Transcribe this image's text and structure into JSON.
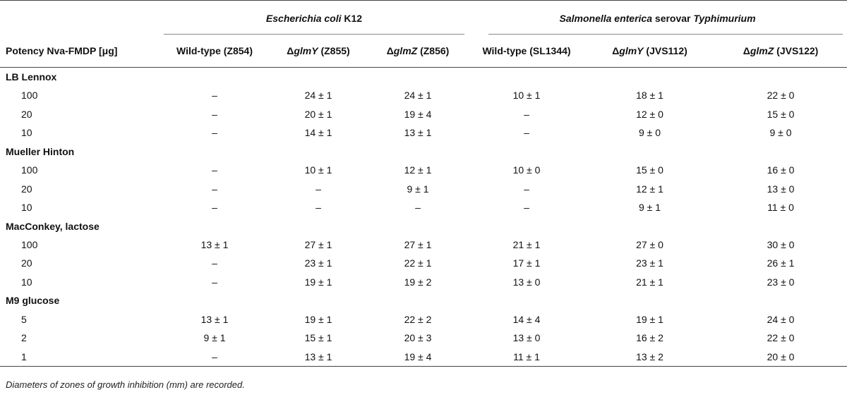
{
  "table": {
    "group_headers": {
      "ecoli": {
        "italic": "Escherichia coli",
        "rest": " K12"
      },
      "salmonella": {
        "italic": "Salmonella enterica",
        "mid": " serovar ",
        "italic2": "Typhimurium"
      }
    },
    "column_headers": [
      {
        "pre": "Potency Nva-FMDP [μg]",
        "it": "",
        "post": ""
      },
      {
        "pre": "Wild-type (Z854)",
        "it": "",
        "post": ""
      },
      {
        "pre": "Δ",
        "it": "glmY",
        "post": " (Z855)"
      },
      {
        "pre": "Δ",
        "it": "glmZ",
        "post": " (Z856)"
      },
      {
        "pre": "Wild-type (SL1344)",
        "it": "",
        "post": ""
      },
      {
        "pre": "Δ",
        "it": "glmY",
        "post": " (JVS112)"
      },
      {
        "pre": "Δ",
        "it": "glmZ",
        "post": " (JVS122)"
      }
    ],
    "sections": [
      {
        "title": "LB Lennox",
        "rows": [
          [
            "100",
            "–",
            "24 ± 1",
            "24 ± 1",
            "10 ± 1",
            "18 ± 1",
            "22 ± 0"
          ],
          [
            "20",
            "–",
            "20 ± 1",
            "19 ± 4",
            "–",
            "12 ± 0",
            "15 ± 0"
          ],
          [
            "10",
            "–",
            "14 ± 1",
            "13 ± 1",
            "–",
            "9 ± 0",
            "9 ± 0"
          ]
        ]
      },
      {
        "title": "Mueller Hinton",
        "rows": [
          [
            "100",
            "–",
            "10 ± 1",
            "12 ± 1",
            "10 ± 0",
            "15 ± 0",
            "16 ± 0"
          ],
          [
            "20",
            "–",
            "–",
            "9 ± 1",
            "–",
            "12 ± 1",
            "13 ± 0"
          ],
          [
            "10",
            "–",
            "–",
            "–",
            "–",
            "9 ± 1",
            "11 ± 0"
          ]
        ]
      },
      {
        "title": "MacConkey, lactose",
        "rows": [
          [
            "100",
            "13 ± 1",
            "27 ± 1",
            "27 ± 1",
            "21 ± 1",
            "27 ± 0",
            "30 ± 0"
          ],
          [
            "20",
            "–",
            "23 ± 1",
            "22 ± 1",
            "17 ± 1",
            "23 ± 1",
            "26 ± 1"
          ],
          [
            "10",
            "–",
            "19 ± 1",
            "19 ± 2",
            "13 ± 0",
            "21 ± 1",
            "23 ± 0"
          ]
        ]
      },
      {
        "title": "M9 glucose",
        "rows": [
          [
            "5",
            "13 ± 1",
            "19 ± 1",
            "22 ± 2",
            "14 ± 4",
            "19 ± 1",
            "24 ± 0"
          ],
          [
            "2",
            "9 ± 1",
            "15 ± 1",
            "20 ± 3",
            "13 ± 0",
            "16 ± 2",
            "22 ± 0"
          ],
          [
            "1",
            "–",
            "13 ± 1",
            "19 ± 4",
            "11 ± 1",
            "13 ± 2",
            "20 ± 0"
          ]
        ]
      }
    ]
  },
  "footnote": "Diameters of zones of growth inhibition (mm) are recorded."
}
